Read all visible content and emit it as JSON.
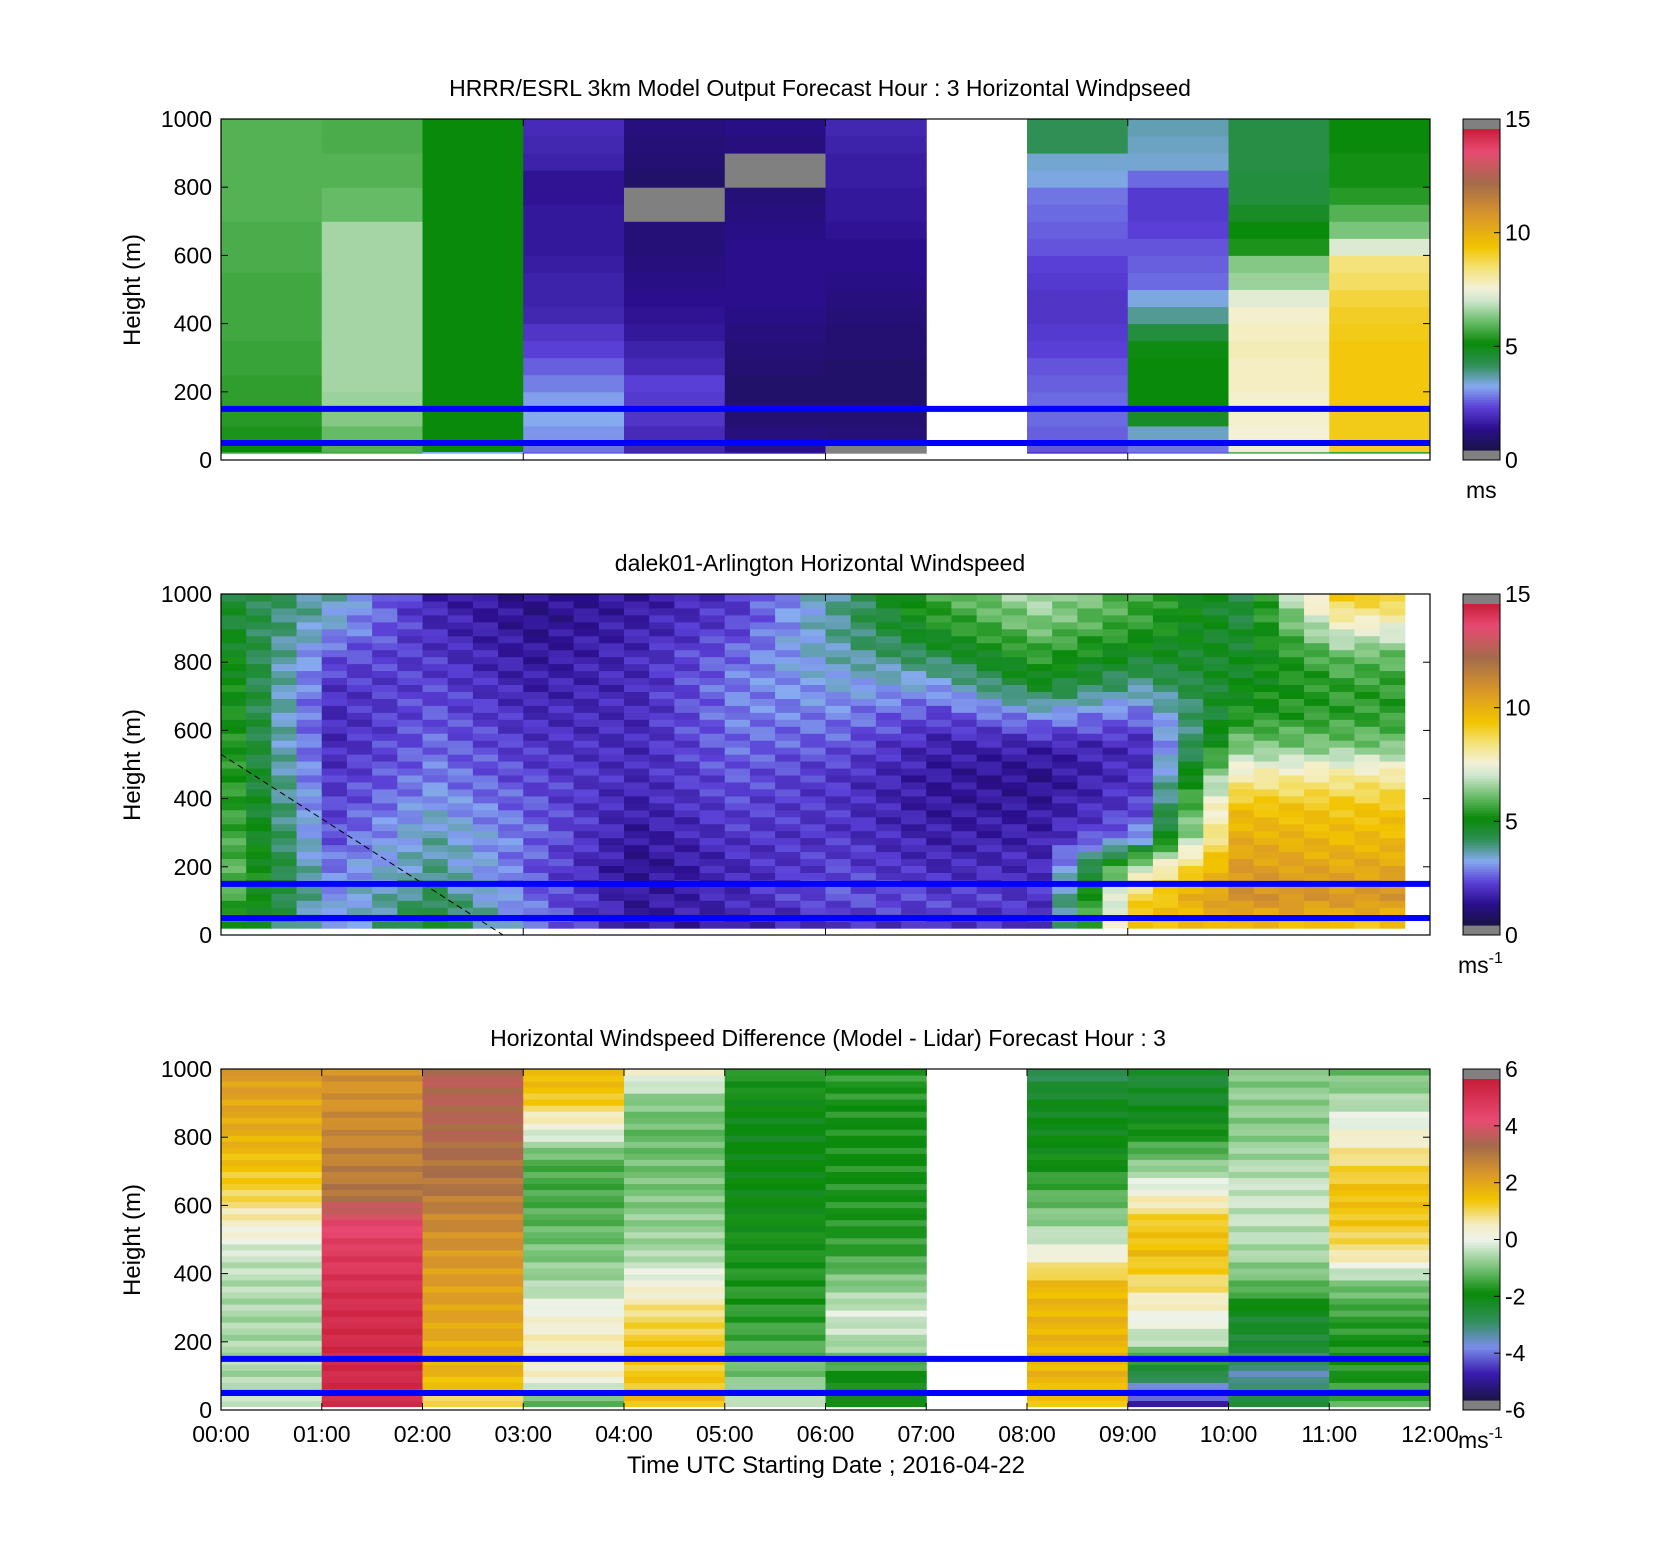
{
  "colors": {
    "axis": "#000000",
    "reference_lines": "#0000ff",
    "missing": "#808080"
  },
  "colormaps": {
    "speed": [
      [
        0.0,
        "#1a1446"
      ],
      [
        1.0,
        "#2a0e8c"
      ],
      [
        2.0,
        "#5a3fd6"
      ],
      [
        3.0,
        "#86aaf0"
      ],
      [
        4.0,
        "#2f8f55"
      ],
      [
        5.0,
        "#0a8a0a"
      ],
      [
        6.0,
        "#66bb66"
      ],
      [
        7.0,
        "#cfe6cf"
      ],
      [
        7.6,
        "#f4f1d6"
      ],
      [
        8.5,
        "#f3e37a"
      ],
      [
        9.5,
        "#f2c400"
      ],
      [
        11.0,
        "#d9962a"
      ],
      [
        12.5,
        "#a46b4a"
      ],
      [
        14.0,
        "#e84a72"
      ],
      [
        15.0,
        "#c81e3a"
      ]
    ],
    "diff": [
      [
        -6,
        "#1a1446"
      ],
      [
        -5,
        "#3a1ab0"
      ],
      [
        -4,
        "#7a8ee8"
      ],
      [
        -3,
        "#2f8f55"
      ],
      [
        -2,
        "#0a8a0a"
      ],
      [
        -1,
        "#7cc47c"
      ],
      [
        0,
        "#eef3ea"
      ],
      [
        0.6,
        "#f4ecc0"
      ],
      [
        1.5,
        "#f2c400"
      ],
      [
        2.5,
        "#d9962a"
      ],
      [
        3.5,
        "#a46b4a"
      ],
      [
        4.5,
        "#e84a72"
      ],
      [
        6,
        "#c81e3a"
      ]
    ]
  },
  "chart_data": [
    {
      "type": "heatmap",
      "title": "HRRR/ESRL 3km Model Output   Forecast Hour : 3 Horizontal Windpseed",
      "ylabel": "Height (m)",
      "xlabel": "",
      "ylim": [
        0,
        1000
      ],
      "yticks": [
        "0",
        "200",
        "400",
        "600",
        "800",
        "1000"
      ],
      "xlim": [
        0,
        12
      ],
      "x_tick_positions": [
        0,
        3,
        6,
        9,
        12
      ],
      "colorbar": {
        "colormap": "speed",
        "range": [
          0,
          15
        ],
        "ticks": [
          "0",
          "5",
          "10",
          "15"
        ],
        "unit": "ms",
        "unit_sup": ""
      },
      "reference_lines_m": [
        150,
        50
      ],
      "x": [
        0,
        1,
        2,
        3,
        4,
        5,
        6,
        7,
        8,
        9,
        10,
        11
      ],
      "levels_m": [
        [
          25,
          60,
          100,
          150,
          200,
          250,
          300,
          350,
          400,
          450,
          500,
          550,
          600,
          650,
          700,
          750,
          800,
          850,
          900,
          950,
          1000
        ]
      ],
      "columns": [
        {
          "hour": 0,
          "values": [
            5.5,
            5.0,
            5.2,
            5.3,
            5.4,
            5.4,
            5.5,
            5.5,
            5.6,
            5.6,
            5.6,
            5.6,
            5.7,
            5.7,
            5.7,
            5.8,
            5.8,
            5.8,
            5.8,
            5.8,
            5.8
          ]
        },
        {
          "hour": 1,
          "values": [
            5.6,
            5.8,
            6.0,
            6.3,
            6.5,
            6.6,
            6.6,
            6.6,
            6.6,
            6.6,
            6.6,
            6.6,
            6.6,
            6.6,
            6.6,
            6.0,
            6.0,
            5.8,
            5.8,
            5.7,
            5.7
          ]
        },
        {
          "hour": 2,
          "values": [
            3.0,
            5.0,
            5.0,
            5.0,
            5.0,
            5.0,
            5.0,
            5.0,
            5.0,
            5.0,
            5.0,
            5.0,
            5.0,
            5.0,
            5.0,
            5.0,
            5.0,
            5.0,
            5.0,
            5.0,
            5.0
          ]
        },
        {
          "hour": 3,
          "values": [
            2.3,
            2.5,
            2.8,
            3.0,
            2.9,
            2.6,
            2.3,
            2.0,
            1.8,
            1.5,
            1.4,
            1.4,
            1.3,
            1.2,
            1.2,
            1.2,
            1.1,
            1.1,
            1.4,
            1.5,
            1.6
          ]
        },
        {
          "hour": 4,
          "values": [
            1.4,
            1.5,
            1.6,
            1.8,
            1.9,
            2.0,
            1.6,
            1.4,
            1.2,
            1.1,
            1.0,
            0.9,
            0.8,
            0.7,
            0.7,
            null,
            null,
            0.5,
            0.6,
            0.7,
            0.8
          ]
        },
        {
          "hour": 5,
          "values": [
            1.2,
            1.0,
            0.8,
            0.6,
            0.5,
            0.5,
            0.6,
            0.7,
            0.8,
            0.9,
            1.0,
            1.0,
            1.0,
            1.0,
            0.9,
            0.8,
            0.7,
            null,
            null,
            0.8,
            0.9
          ]
        },
        {
          "hour": 6,
          "values": [
            null,
            null,
            0.7,
            0.6,
            0.5,
            0.5,
            0.5,
            0.6,
            0.6,
            0.7,
            0.8,
            0.9,
            1.0,
            1.0,
            1.1,
            1.2,
            1.2,
            1.3,
            1.3,
            1.4,
            1.5
          ]
        },
        {
          "hour": 7,
          "values": [
            null,
            null,
            null,
            null,
            null,
            null,
            null,
            null,
            null,
            null,
            null,
            null,
            null,
            null,
            null,
            null,
            null,
            null,
            null,
            null,
            null
          ]
        },
        {
          "hour": 8,
          "values": [
            1.8,
            2.2,
            2.3,
            2.4,
            2.4,
            2.3,
            2.2,
            2.0,
            1.9,
            1.8,
            1.8,
            1.9,
            2.0,
            2.2,
            2.3,
            2.4,
            2.5,
            3.1,
            3.2,
            4.0,
            4.0
          ]
        },
        {
          "hour": 9,
          "values": [
            2.3,
            2.5,
            3.3,
            4.6,
            5.0,
            5.0,
            5.0,
            4.9,
            4.3,
            3.6,
            3.1,
            2.4,
            2.3,
            2.2,
            2.0,
            1.9,
            1.9,
            2.4,
            3.2,
            3.3,
            3.4
          ]
        },
        {
          "hour": 10,
          "values": [
            5.8,
            7.5,
            7.6,
            7.7,
            7.7,
            7.8,
            7.8,
            7.9,
            7.8,
            7.7,
            7.3,
            6.5,
            6.3,
            5.2,
            5.0,
            4.6,
            4.3,
            4.3,
            4.2,
            4.2,
            4.2
          ]
        },
        {
          "hour": 11,
          "values": [
            5.5,
            9.2,
            9.3,
            9.3,
            9.4,
            9.4,
            9.4,
            9.4,
            9.3,
            9.2,
            9.0,
            8.7,
            8.5,
            7.2,
            6.2,
            5.8,
            5.3,
            5.1,
            5.1,
            5.0,
            5.0
          ]
        }
      ]
    },
    {
      "type": "heatmap",
      "title": "dalek01-Arlington  Horizontal Windspeed",
      "ylabel": "Height (m)",
      "xlabel": "",
      "ylim": [
        0,
        1000
      ],
      "yticks": [
        "0",
        "200",
        "400",
        "600",
        "800",
        "1000"
      ],
      "xlim": [
        0,
        12
      ],
      "x_tick_positions": [
        0,
        3,
        6,
        9,
        12
      ],
      "colorbar": {
        "colormap": "speed",
        "range": [
          0,
          15
        ],
        "ticks": [
          "0",
          "5",
          "10",
          "15"
        ],
        "unit": "ms",
        "unit_sup": "-1"
      },
      "reference_lines_m": [
        150,
        50
      ],
      "dashed_line": {
        "x": [
          0,
          2.8
        ],
        "y": [
          530,
          0
        ]
      },
      "x_end": 11.75,
      "profile_minutes": 15,
      "hour_profiles": [
        {
          "hour": 0,
          "values_low_to_high": [
            5.0,
            5.6,
            5.8,
            5.6,
            5.4,
            5.3,
            5.2,
            5.1,
            5.0,
            4.8,
            4.5,
            4.4
          ]
        },
        {
          "hour": 1,
          "values_low_to_high": [
            2.8,
            2.9,
            2.6,
            2.2,
            2.0,
            1.8,
            1.6,
            1.6,
            1.8,
            2.2,
            3.0,
            3.4
          ]
        },
        {
          "hour": 2,
          "values_low_to_high": [
            4.8,
            4.0,
            3.6,
            3.4,
            3.0,
            2.6,
            2.4,
            2.2,
            2.0,
            1.8,
            1.6,
            1.4
          ]
        },
        {
          "hour": 3,
          "values_low_to_high": [
            2.6,
            2.4,
            2.2,
            2.4,
            2.2,
            2.0,
            1.8,
            1.6,
            1.4,
            1.2,
            1.0,
            1.0
          ]
        },
        {
          "hour": 4,
          "values_low_to_high": [
            1.2,
            1.2,
            1.0,
            1.2,
            1.4,
            1.6,
            1.6,
            1.6,
            1.6,
            1.6,
            1.4,
            1.2
          ]
        },
        {
          "hour": 5,
          "values_low_to_high": [
            1.4,
            1.6,
            1.6,
            1.8,
            2.0,
            2.2,
            2.4,
            2.6,
            2.6,
            2.4,
            2.0,
            1.8
          ]
        },
        {
          "hour": 6,
          "values_low_to_high": [
            1.6,
            2.2,
            2.0,
            1.8,
            1.8,
            1.8,
            2.2,
            2.6,
            3.0,
            3.4,
            3.6,
            3.6
          ]
        },
        {
          "hour": 7,
          "values_low_to_high": [
            1.8,
            2.0,
            1.6,
            1.4,
            1.2,
            1.2,
            1.4,
            2.0,
            3.0,
            4.2,
            5.2,
            5.6
          ]
        },
        {
          "hour": 8,
          "values_low_to_high": [
            1.6,
            1.8,
            1.6,
            1.4,
            1.2,
            1.0,
            1.4,
            2.8,
            4.6,
            5.4,
            6.2,
            6.8
          ]
        },
        {
          "hour": 9,
          "values_low_to_high": [
            9.6,
            9.0,
            7.0,
            2.8,
            2.0,
            1.8,
            1.6,
            2.4,
            3.6,
            4.6,
            5.4,
            5.6
          ]
        },
        {
          "hour": 10,
          "values_low_to_high": [
            9.8,
            11.2,
            10.8,
            10.2,
            9.6,
            8.0,
            6.2,
            5.2,
            4.8,
            4.6,
            4.4,
            4.2
          ]
        },
        {
          "hour": 11,
          "values_low_to_high": [
            9.4,
            11.0,
            10.4,
            9.8,
            9.4,
            8.2,
            6.2,
            5.4,
            5.4,
            6.0,
            7.6,
            9.4
          ]
        }
      ]
    },
    {
      "type": "heatmap",
      "title": "Horizontal Windspeed Difference (Model - Lidar) Forecast Hour : 3",
      "ylabel": "Height (m)",
      "xlabel": "Time UTC  Starting Date ; 2016-04-22",
      "ylim": [
        0,
        1000
      ],
      "yticks": [
        "0",
        "200",
        "400",
        "600",
        "800",
        "1000"
      ],
      "xlim": [
        0,
        12
      ],
      "xticks": [
        "00:00",
        "01:00",
        "02:00",
        "03:00",
        "04:00",
        "05:00",
        "06:00",
        "07:00",
        "08:00",
        "09:00",
        "10:00",
        "11:00",
        "12:00"
      ],
      "colorbar": {
        "colormap": "diff",
        "range": [
          -6,
          6
        ],
        "ticks": [
          "-6",
          "-4",
          "-2",
          "0",
          "2",
          "4",
          "6"
        ],
        "unit": "ms",
        "unit_sup": "-1"
      },
      "reference_lines_m": [
        150,
        50
      ],
      "hour_profiles": [
        {
          "hour": 0,
          "values_low_to_high": [
            -0.4,
            -0.6,
            -0.6,
            -0.6,
            -0.5,
            -0.3,
            0.5,
            1.2,
            1.6,
            2.0,
            2.2,
            2.4
          ]
        },
        {
          "hour": 1,
          "values_low_to_high": [
            5.4,
            5.6,
            5.6,
            5.5,
            5.3,
            5.0,
            4.6,
            3.2,
            3.0,
            2.8,
            2.6,
            2.6
          ]
        },
        {
          "hour": 2,
          "values_low_to_high": [
            1.0,
            1.8,
            2.0,
            2.2,
            2.3,
            2.5,
            2.8,
            3.2,
            3.4,
            3.6,
            3.7,
            3.8
          ]
        },
        {
          "hour": 3,
          "values_low_to_high": [
            -1.4,
            0.4,
            0.6,
            0.2,
            -0.6,
            -1.0,
            -1.3,
            -1.5,
            -1.4,
            0.0,
            1.4,
            1.8
          ]
        },
        {
          "hour": 4,
          "values_low_to_high": [
            1.6,
            1.4,
            1.4,
            1.0,
            0.2,
            -0.6,
            -0.8,
            -1.0,
            -1.1,
            -1.2,
            -0.9,
            0.4
          ]
        },
        {
          "hour": 5,
          "values_low_to_high": [
            -0.4,
            -1.0,
            -1.4,
            -1.7,
            -1.8,
            -1.9,
            -2.0,
            -2.1,
            -2.1,
            -2.2,
            -2.0,
            -1.8
          ]
        },
        {
          "hour": 6,
          "values_low_to_high": [
            -2.2,
            -2.0,
            -0.6,
            -0.2,
            -0.9,
            -1.6,
            -1.8,
            -1.8,
            -1.9,
            -1.9,
            -1.8,
            -1.7
          ]
        },
        {
          "hour": 7,
          "values_low_to_high": [
            null,
            null,
            null,
            null,
            null,
            null,
            null,
            null,
            null,
            null,
            null,
            null
          ]
        },
        {
          "hour": 8,
          "values_low_to_high": [
            1.6,
            1.8,
            1.8,
            1.8,
            1.7,
            0.2,
            -0.8,
            -1.4,
            -2.0,
            -2.2,
            -2.3,
            -3.0
          ]
        },
        {
          "hour": 9,
          "values_low_to_high": [
            -5.2,
            -3.0,
            -0.6,
            0.2,
            1.0,
            1.6,
            1.4,
            0.2,
            -1.0,
            -2.0,
            -2.4,
            -2.6
          ]
        },
        {
          "hour": 10,
          "values_low_to_high": [
            -2.6,
            -3.6,
            -2.6,
            -2.4,
            -1.2,
            -0.6,
            -0.4,
            -0.3,
            -0.6,
            -0.9,
            -0.8,
            -1.0
          ]
        },
        {
          "hour": 11,
          "values_low_to_high": [
            -1.4,
            -1.8,
            -1.9,
            -1.6,
            -1.0,
            0.8,
            1.4,
            1.6,
            1.0,
            0.2,
            -0.6,
            -1.2
          ]
        }
      ]
    }
  ]
}
